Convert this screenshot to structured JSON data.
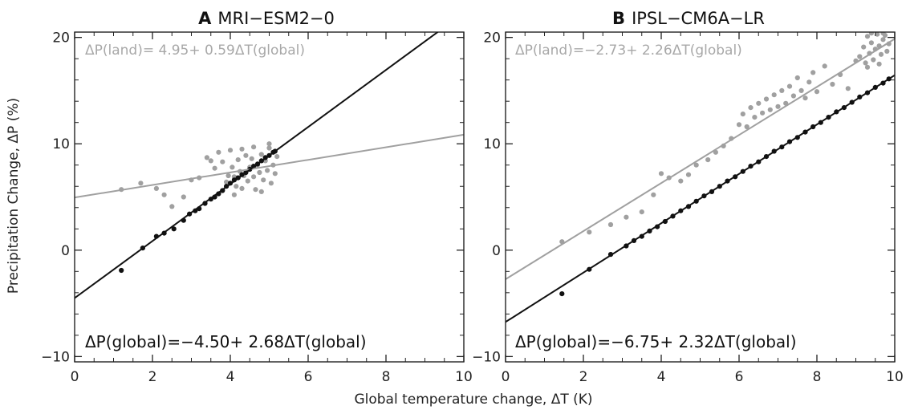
{
  "figure": {
    "ylabel": "Precipitation Change, ΔP (%)",
    "xlabel": "Global temperature change, ΔT (K)"
  },
  "colors": {
    "global": "#111111",
    "land": "#a0a0a0",
    "frame": "#222222"
  },
  "chart_data": [
    {
      "type": "scatter",
      "panel_label": "A",
      "title": "MRI−ESM2−0",
      "xlabel": "Global temperature change, ΔT (K)",
      "ylabel": "Precipitation Change, ΔP (%)",
      "xlim": [
        0,
        10
      ],
      "ylim": [
        -10.5,
        20.5
      ],
      "xticks": [
        "0",
        "2",
        "4",
        "6",
        "8",
        "10"
      ],
      "yticks": [
        "−10",
        "0",
        "10",
        "20"
      ],
      "grid": false,
      "annotations": {
        "land_equation": "ΔP(land)= 4.95+ 0.59ΔT(global)",
        "global_equation": "ΔP(global)=−4.50+ 2.68ΔT(global)"
      },
      "series": [
        {
          "kind": "land",
          "color": "#a0a0a0",
          "fit": {
            "intercept": 4.95,
            "slope": 0.59
          },
          "points": [
            [
              1.2,
              5.7
            ],
            [
              1.7,
              6.3
            ],
            [
              2.1,
              5.8
            ],
            [
              2.3,
              5.2
            ],
            [
              2.5,
              4.1
            ],
            [
              2.8,
              5.0
            ],
            [
              3.0,
              6.6
            ],
            [
              3.2,
              6.8
            ],
            [
              3.4,
              8.7
            ],
            [
              3.5,
              8.4
            ],
            [
              3.6,
              7.7
            ],
            [
              3.7,
              9.2
            ],
            [
              3.8,
              8.3
            ],
            [
              3.9,
              6.4
            ],
            [
              3.95,
              7.0
            ],
            [
              4.0,
              9.4
            ],
            [
              4.05,
              7.8
            ],
            [
              4.1,
              6.9
            ],
            [
              4.15,
              6.0
            ],
            [
              4.2,
              8.5
            ],
            [
              4.25,
              7.4
            ],
            [
              4.3,
              5.8
            ],
            [
              4.35,
              7.0
            ],
            [
              4.4,
              8.9
            ],
            [
              4.45,
              6.5
            ],
            [
              4.5,
              7.8
            ],
            [
              4.55,
              8.6
            ],
            [
              4.6,
              6.9
            ],
            [
              4.65,
              5.7
            ],
            [
              4.7,
              8.0
            ],
            [
              4.75,
              7.3
            ],
            [
              4.8,
              9.0
            ],
            [
              4.85,
              6.6
            ],
            [
              4.9,
              8.4
            ],
            [
              4.95,
              7.5
            ],
            [
              5.0,
              9.6
            ],
            [
              5.05,
              6.3
            ],
            [
              5.1,
              8.0
            ],
            [
              5.15,
              7.2
            ],
            [
              5.2,
              8.8
            ],
            [
              4.3,
              9.5
            ],
            [
              4.6,
              9.7
            ],
            [
              5.0,
              10.0
            ],
            [
              4.1,
              5.2
            ],
            [
              4.8,
              5.5
            ]
          ]
        },
        {
          "kind": "global",
          "color": "#111111",
          "fit": {
            "intercept": -4.5,
            "slope": 2.68
          },
          "points": [
            [
              1.2,
              -1.9
            ],
            [
              1.75,
              0.2
            ],
            [
              2.1,
              1.3
            ],
            [
              2.3,
              1.6
            ],
            [
              2.55,
              2.0
            ],
            [
              2.8,
              2.8
            ],
            [
              2.95,
              3.4
            ],
            [
              3.1,
              3.7
            ],
            [
              3.2,
              3.9
            ],
            [
              3.35,
              4.4
            ],
            [
              3.5,
              4.8
            ],
            [
              3.6,
              5.0
            ],
            [
              3.7,
              5.3
            ],
            [
              3.8,
              5.6
            ],
            [
              3.9,
              6.0
            ],
            [
              4.0,
              6.3
            ],
            [
              4.1,
              6.6
            ],
            [
              4.2,
              6.8
            ],
            [
              4.3,
              7.1
            ],
            [
              4.4,
              7.3
            ],
            [
              4.5,
              7.6
            ],
            [
              4.6,
              7.9
            ],
            [
              4.7,
              8.1
            ],
            [
              4.8,
              8.4
            ],
            [
              4.9,
              8.7
            ],
            [
              5.0,
              8.9
            ],
            [
              5.1,
              9.2
            ],
            [
              5.15,
              9.3
            ]
          ]
        }
      ]
    },
    {
      "type": "scatter",
      "panel_label": "B",
      "title": "IPSL−CM6A−LR",
      "xlabel": "Global temperature change, ΔT (K)",
      "ylabel": "Precipitation Change, ΔP (%)",
      "xlim": [
        0,
        10
      ],
      "ylim": [
        -10.5,
        20.5
      ],
      "xticks": [
        "0",
        "2",
        "4",
        "6",
        "8",
        "10"
      ],
      "yticks": [
        "−10",
        "0",
        "10",
        "20"
      ],
      "grid": false,
      "annotations": {
        "land_equation": "ΔP(land)=−2.73+ 2.26ΔT(global)",
        "global_equation": "ΔP(global)=−6.75+ 2.32ΔT(global)"
      },
      "series": [
        {
          "kind": "land",
          "color": "#a0a0a0",
          "fit": {
            "intercept": -2.73,
            "slope": 2.26
          },
          "points": [
            [
              1.45,
              0.8
            ],
            [
              2.15,
              1.7
            ],
            [
              2.7,
              2.4
            ],
            [
              3.1,
              3.1
            ],
            [
              3.5,
              3.6
            ],
            [
              3.8,
              5.2
            ],
            [
              4.0,
              7.2
            ],
            [
              4.2,
              6.8
            ],
            [
              4.5,
              6.5
            ],
            [
              4.7,
              7.1
            ],
            [
              4.9,
              8.0
            ],
            [
              5.2,
              8.5
            ],
            [
              5.4,
              9.2
            ],
            [
              5.6,
              9.8
            ],
            [
              5.8,
              10.5
            ],
            [
              6.0,
              11.8
            ],
            [
              6.1,
              12.8
            ],
            [
              6.2,
              11.6
            ],
            [
              6.3,
              13.4
            ],
            [
              6.4,
              12.5
            ],
            [
              6.5,
              13.8
            ],
            [
              6.6,
              12.9
            ],
            [
              6.7,
              14.2
            ],
            [
              6.8,
              13.2
            ],
            [
              6.9,
              14.6
            ],
            [
              7.0,
              13.5
            ],
            [
              7.1,
              15.0
            ],
            [
              7.2,
              13.8
            ],
            [
              7.3,
              15.4
            ],
            [
              7.4,
              14.5
            ],
            [
              7.5,
              16.2
            ],
            [
              7.6,
              15.0
            ],
            [
              7.7,
              14.3
            ],
            [
              7.8,
              15.8
            ],
            [
              7.9,
              16.7
            ],
            [
              8.0,
              14.9
            ],
            [
              8.2,
              17.3
            ],
            [
              8.4,
              15.6
            ],
            [
              8.6,
              16.5
            ],
            [
              8.8,
              15.2
            ],
            [
              9.0,
              17.8
            ],
            [
              9.1,
              18.2
            ],
            [
              9.2,
              19.1
            ],
            [
              9.25,
              17.6
            ],
            [
              9.3,
              20.1
            ],
            [
              9.35,
              18.5
            ],
            [
              9.4,
              19.5
            ],
            [
              9.45,
              17.9
            ],
            [
              9.5,
              18.9
            ],
            [
              9.55,
              20.3
            ],
            [
              9.6,
              19.2
            ],
            [
              9.65,
              18.4
            ],
            [
              9.7,
              19.8
            ],
            [
              9.75,
              20.2
            ],
            [
              9.8,
              18.7
            ],
            [
              9.85,
              19.4
            ],
            [
              9.3,
              17.2
            ],
            [
              9.6,
              17.5
            ],
            [
              9.4,
              20.4
            ],
            [
              9.7,
              20.4
            ]
          ]
        },
        {
          "kind": "global",
          "color": "#111111",
          "fit": {
            "intercept": -6.75,
            "slope": 2.32
          },
          "points": [
            [
              1.45,
              -4.1
            ],
            [
              2.15,
              -1.8
            ],
            [
              2.7,
              -0.4
            ],
            [
              3.1,
              0.4
            ],
            [
              3.3,
              0.9
            ],
            [
              3.5,
              1.3
            ],
            [
              3.7,
              1.8
            ],
            [
              3.9,
              2.2
            ],
            [
              4.1,
              2.7
            ],
            [
              4.3,
              3.2
            ],
            [
              4.5,
              3.7
            ],
            [
              4.7,
              4.1
            ],
            [
              4.9,
              4.6
            ],
            [
              5.1,
              5.1
            ],
            [
              5.3,
              5.5
            ],
            [
              5.5,
              6.0
            ],
            [
              5.7,
              6.5
            ],
            [
              5.9,
              6.9
            ],
            [
              6.1,
              7.4
            ],
            [
              6.3,
              7.9
            ],
            [
              6.5,
              8.3
            ],
            [
              6.7,
              8.8
            ],
            [
              6.9,
              9.3
            ],
            [
              7.1,
              9.7
            ],
            [
              7.3,
              10.2
            ],
            [
              7.5,
              10.6
            ],
            [
              7.7,
              11.1
            ],
            [
              7.9,
              11.6
            ],
            [
              8.1,
              12.0
            ],
            [
              8.3,
              12.5
            ],
            [
              8.5,
              13.0
            ],
            [
              8.7,
              13.4
            ],
            [
              8.9,
              13.9
            ],
            [
              9.1,
              14.4
            ],
            [
              9.3,
              14.8
            ],
            [
              9.5,
              15.3
            ],
            [
              9.7,
              15.7
            ],
            [
              9.85,
              16.1
            ]
          ]
        }
      ]
    }
  ]
}
